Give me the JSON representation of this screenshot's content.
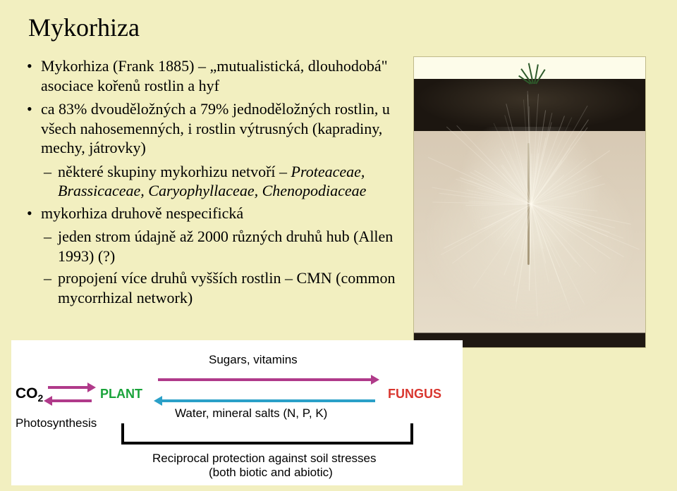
{
  "title": "Mykorhiza",
  "bullets": {
    "b1": "Mykorhiza (Frank 1885) – „mutualistická, dlouhodobá\" asociace kořenů rostlin a hyf",
    "b2": "ca 83% dvouděložných a 79% jednoděložných rostlin, u všech nahosemenných, i rostlin výtrusných (kapradiny, mechy, játrovky)",
    "b2a_plain": "některé skupiny mykorhizu netvoří – ",
    "b2a_italic": "Proteaceae, Brassicaceae, Caryophyllaceae, Chenopodiaceae",
    "b3": "mykorhiza druhově nespecifická",
    "b3a": "jeden strom údajně až 2000 různých druhů hub (Allen 1993)  (?)",
    "b3b": "propojení více druhů vyšších rostlin – CMN (common mycorrhizal network)"
  },
  "diagram": {
    "co2": "CO",
    "co2_sub": "2",
    "plant": "PLANT",
    "fungus": "FUNGUS",
    "photosynthesis": "Photosynthesis",
    "sugars": "Sugars, vitamins",
    "water": "Water, mineral salts (N, P, K)",
    "recip1": "Reciprocal protection against soil stresses",
    "recip2": "(both biotic and abiotic)",
    "colors": {
      "plant": "#19a33a",
      "fungus": "#d9362f",
      "top_arrows": "#b03a8a",
      "bottom_arrow": "#2aa0c8",
      "black": "#000000"
    }
  }
}
